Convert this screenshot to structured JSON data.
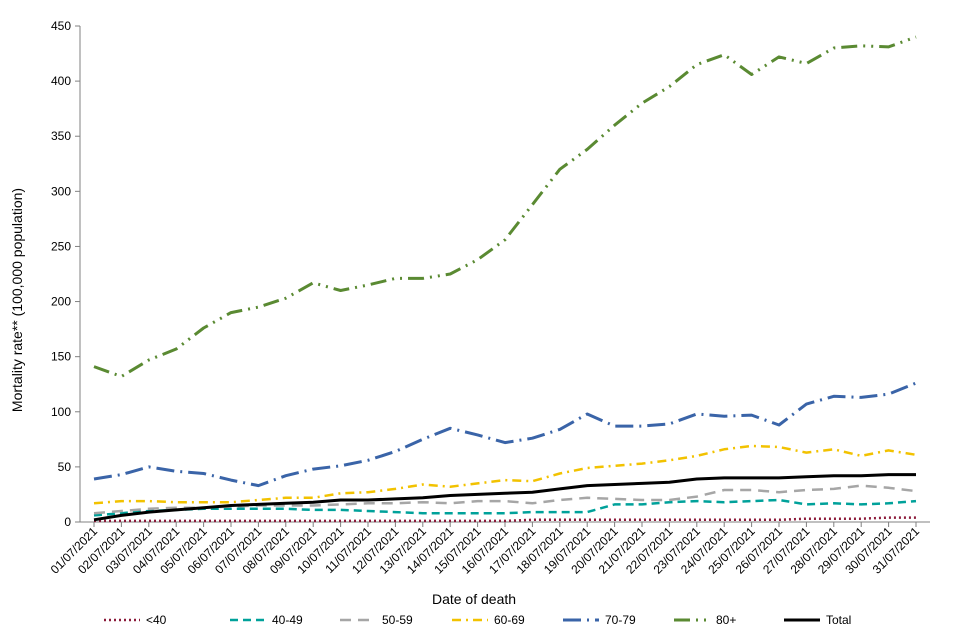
{
  "chart_data": {
    "type": "line",
    "title": "",
    "xlabel": "Date of death",
    "ylabel": "Mortality rate** (100,000 population)",
    "ylim": [
      0,
      450
    ],
    "yticks": [
      0,
      50,
      100,
      150,
      200,
      250,
      300,
      350,
      400,
      450
    ],
    "grid": false,
    "legend_position": "bottom",
    "categories": [
      "01/07/2021",
      "02/07/2021",
      "03/07/2021",
      "04/07/2021",
      "05/07/2021",
      "06/07/2021",
      "07/07/2021",
      "08/07/2021",
      "09/07/2021",
      "10/07/2021",
      "11/07/2021",
      "12/07/2021",
      "13/07/2021",
      "14/07/2021",
      "15/07/2021",
      "16/07/2021",
      "17/07/2021",
      "18/07/2021",
      "19/07/2021",
      "20/07/2021",
      "21/07/2021",
      "22/07/2021",
      "23/07/2021",
      "24/07/2021",
      "25/07/2021",
      "26/07/2021",
      "27/07/2021",
      "28/07/2021",
      "29/07/2021",
      "30/07/2021",
      "31/07/2021"
    ],
    "series": [
      {
        "name": "<40",
        "color": "#8b1a3a",
        "dash": "2,3",
        "width": 2.5,
        "values": [
          1,
          1,
          1,
          1,
          1,
          1,
          1,
          1,
          1,
          1,
          1,
          1,
          1,
          1,
          1,
          1,
          2,
          2,
          2,
          2,
          2,
          2,
          2,
          2,
          2,
          2,
          3,
          3,
          3,
          4,
          4
        ]
      },
      {
        "name": "40-49",
        "color": "#00a19a",
        "dash": "8,5",
        "width": 2.5,
        "values": [
          6,
          8,
          10,
          11,
          12,
          12,
          12,
          12,
          11,
          11,
          10,
          9,
          8,
          8,
          8,
          8,
          9,
          9,
          9,
          16,
          16,
          18,
          19,
          18,
          19,
          20,
          16,
          17,
          16,
          17,
          19
        ]
      },
      {
        "name": "50-59",
        "color": "#a6a6a6",
        "dash": "11,7",
        "width": 2.5,
        "values": [
          8,
          10,
          12,
          13,
          13,
          14,
          15,
          15,
          15,
          16,
          17,
          17,
          18,
          17,
          19,
          19,
          17,
          20,
          22,
          21,
          20,
          20,
          23,
          29,
          29,
          27,
          29,
          30,
          33,
          31,
          28
        ]
      },
      {
        "name": "60-69",
        "color": "#f2c200",
        "dash": "9,5,2,5",
        "width": 2.5,
        "values": [
          17,
          19,
          19,
          18,
          18,
          18,
          20,
          22,
          22,
          26,
          27,
          30,
          34,
          32,
          35,
          38,
          37,
          44,
          49,
          51,
          53,
          56,
          60,
          66,
          69,
          68,
          63,
          66,
          60,
          65,
          61
        ]
      },
      {
        "name": "70-79",
        "color": "#3a64a8",
        "dash": "18,6,2,6",
        "width": 3,
        "values": [
          39,
          43,
          50,
          46,
          44,
          38,
          33,
          42,
          48,
          51,
          56,
          64,
          75,
          85,
          79,
          72,
          76,
          84,
          98,
          87,
          87,
          89,
          98,
          96,
          97,
          88,
          107,
          114,
          113,
          116,
          126
        ]
      },
      {
        "name": "80+",
        "color": "#5a8a32",
        "dash": "16,6,2,6,2,6",
        "width": 3,
        "values": [
          141,
          132,
          147,
          157,
          176,
          190,
          195,
          203,
          217,
          210,
          215,
          221,
          221,
          225,
          238,
          256,
          288,
          320,
          338,
          360,
          380,
          395,
          415,
          424,
          406,
          422,
          416,
          430,
          432,
          431,
          440
        ]
      },
      {
        "name": "Total",
        "color": "#000000",
        "dash": "",
        "width": 3,
        "values": [
          2,
          6,
          9,
          11,
          13,
          15,
          16,
          17,
          18,
          20,
          20,
          21,
          22,
          24,
          25,
          26,
          27,
          30,
          33,
          34,
          35,
          36,
          39,
          40,
          40,
          40,
          41,
          42,
          42,
          43,
          43
        ]
      }
    ]
  }
}
